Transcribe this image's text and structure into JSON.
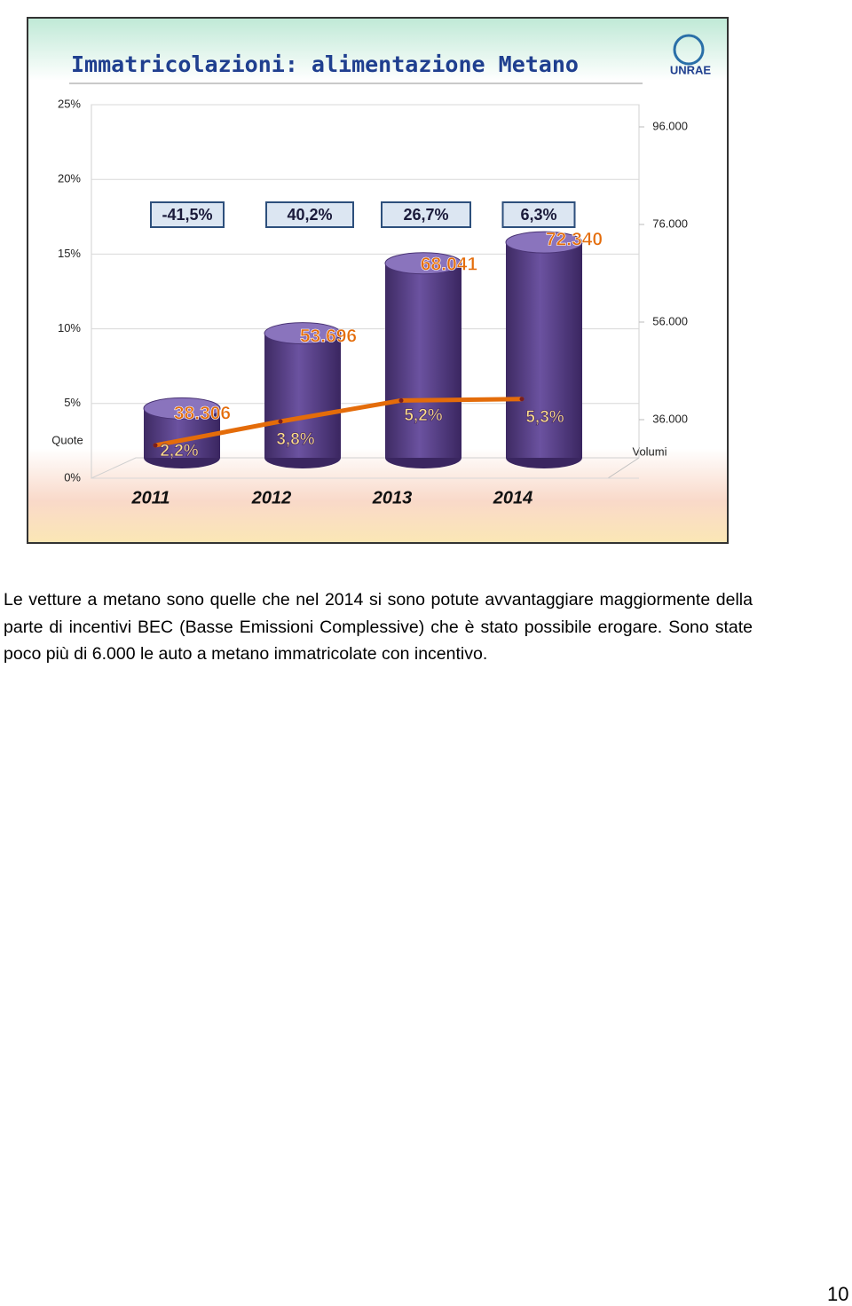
{
  "chart_data": {
    "type": "bar",
    "title": "Immatricolazioni: alimentazione Metano",
    "logo": "UNRAE",
    "categories": [
      "2011",
      "2012",
      "2013",
      "2014"
    ],
    "series": [
      {
        "type": "bar",
        "axis": "y2",
        "color": "#5b3f8a",
        "values": [
          38306,
          53696,
          68041,
          72340
        ],
        "value_labels": [
          "38.306",
          "53.696",
          "68.041",
          "72.340"
        ]
      },
      {
        "type": "line",
        "color": "#e46c0a",
        "values": [
          2.2,
          3.8,
          5.2,
          5.3
        ],
        "value_labels": [
          "2,2%",
          "3,8%",
          "5,2%",
          "5,3%"
        ]
      }
    ],
    "growth": {
      "values": [
        -41.5,
        40.2,
        26.7,
        6.3
      ],
      "value_labels": [
        "-41,5%",
        "40,2%",
        "26,7%",
        "6,3%"
      ]
    },
    "ylabel": "Quote",
    "y2label": "Volumi",
    "ylim": [
      0,
      25
    ],
    "yticks": [
      {
        "value": 0,
        "label": "0%"
      },
      {
        "value": 5,
        "label": "5%"
      },
      {
        "value": 10,
        "label": "10%"
      },
      {
        "value": 15,
        "label": "15%"
      },
      {
        "value": 20,
        "label": "20%"
      },
      {
        "value": 25,
        "label": "25%"
      }
    ],
    "y2lim": [
      24000,
      100545
    ],
    "y2ticks": [
      {
        "value": 36000,
        "label": "36.000"
      },
      {
        "value": 56000,
        "label": "56.000"
      },
      {
        "value": 76000,
        "label": "76.000"
      },
      {
        "value": 96000,
        "label": "96.000"
      }
    ],
    "grid": true
  },
  "body": {
    "paragraph": "Le vetture a metano sono quelle che nel 2014 si sono potute avvantaggiare maggiormente della parte di incentivi BEC (Basse Emissioni Complessive) che è stato possibile erogare. Sono state poco più di 6.000 le auto a metano immatricolate con incentivo."
  },
  "page_number": "10"
}
